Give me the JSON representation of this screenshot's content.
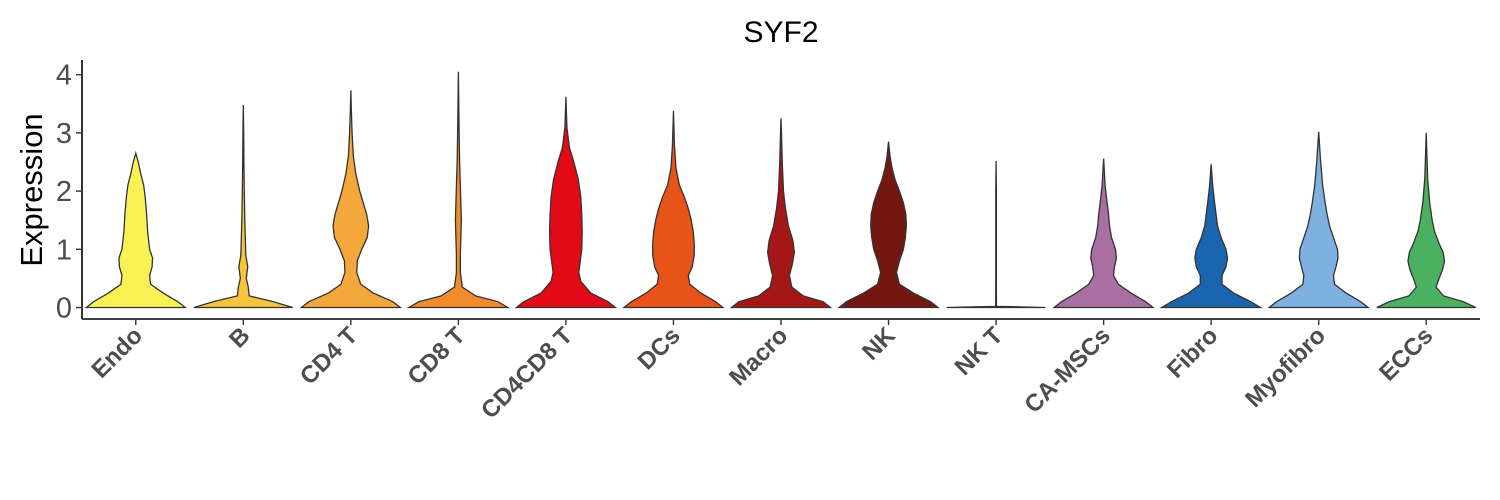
{
  "chart_data": {
    "type": "violin",
    "title": "SYF2",
    "xlabel": "",
    "ylabel": "Expression",
    "ylim": [
      -0.2,
      4.25
    ],
    "yticks": [
      0,
      1,
      2,
      3,
      4
    ],
    "grid": false,
    "legend": "none",
    "categories": [
      "Endo",
      "B",
      "CD4 T",
      "CD8 T",
      "CD4CD8 T",
      "DCs",
      "Macro",
      "NK",
      "NK T",
      "CA-MSCs",
      "Fibro",
      "Myofibro",
      "ECCs"
    ],
    "series": [
      {
        "category": "Endo",
        "color": "#F9F254",
        "max": 2.65,
        "density": [
          [
            0,
            1.0
          ],
          [
            0.1,
            0.85
          ],
          [
            0.25,
            0.55
          ],
          [
            0.4,
            0.3
          ],
          [
            0.55,
            0.28
          ],
          [
            0.7,
            0.33
          ],
          [
            0.85,
            0.34
          ],
          [
            1.0,
            0.28
          ],
          [
            1.3,
            0.24
          ],
          [
            1.6,
            0.22
          ],
          [
            1.9,
            0.19
          ],
          [
            2.1,
            0.16
          ],
          [
            2.3,
            0.1
          ],
          [
            2.5,
            0.05
          ],
          [
            2.65,
            0.0
          ]
        ]
      },
      {
        "category": "B",
        "color": "#F7C53B",
        "max": 3.48,
        "density": [
          [
            0,
            1.0
          ],
          [
            0.1,
            0.6
          ],
          [
            0.2,
            0.12
          ],
          [
            0.35,
            0.1
          ],
          [
            0.5,
            0.06
          ],
          [
            0.7,
            0.09
          ],
          [
            0.9,
            0.05
          ],
          [
            1.2,
            0.04
          ],
          [
            1.5,
            0.03
          ],
          [
            2.0,
            0.02
          ],
          [
            2.5,
            0.012
          ],
          [
            3.0,
            0.008
          ],
          [
            3.48,
            0.0
          ]
        ]
      },
      {
        "category": "CD4 T",
        "color": "#F4A73A",
        "max": 3.73,
        "density": [
          [
            0,
            1.0
          ],
          [
            0.1,
            0.85
          ],
          [
            0.25,
            0.45
          ],
          [
            0.4,
            0.2
          ],
          [
            0.6,
            0.12
          ],
          [
            0.8,
            0.13
          ],
          [
            1.0,
            0.22
          ],
          [
            1.2,
            0.33
          ],
          [
            1.4,
            0.36
          ],
          [
            1.6,
            0.32
          ],
          [
            1.8,
            0.25
          ],
          [
            2.0,
            0.18
          ],
          [
            2.3,
            0.1
          ],
          [
            2.6,
            0.05
          ],
          [
            3.0,
            0.025
          ],
          [
            3.4,
            0.01
          ],
          [
            3.73,
            0.0
          ]
        ]
      },
      {
        "category": "CD8 T",
        "color": "#F08B2E",
        "max": 4.05,
        "density": [
          [
            0,
            1.0
          ],
          [
            0.1,
            0.8
          ],
          [
            0.2,
            0.35
          ],
          [
            0.35,
            0.08
          ],
          [
            0.6,
            0.04
          ],
          [
            0.9,
            0.04
          ],
          [
            1.2,
            0.05
          ],
          [
            1.5,
            0.06
          ],
          [
            1.8,
            0.05
          ],
          [
            2.1,
            0.04
          ],
          [
            2.5,
            0.025
          ],
          [
            3.0,
            0.015
          ],
          [
            3.5,
            0.008
          ],
          [
            4.05,
            0.0
          ]
        ]
      },
      {
        "category": "CD4CD8 T",
        "color": "#E20A17",
        "max": 3.62,
        "density": [
          [
            0,
            1.0
          ],
          [
            0.1,
            0.85
          ],
          [
            0.25,
            0.5
          ],
          [
            0.45,
            0.3
          ],
          [
            0.6,
            0.26
          ],
          [
            0.8,
            0.29
          ],
          [
            1.0,
            0.32
          ],
          [
            1.3,
            0.33
          ],
          [
            1.6,
            0.32
          ],
          [
            1.9,
            0.3
          ],
          [
            2.2,
            0.25
          ],
          [
            2.5,
            0.16
          ],
          [
            2.75,
            0.07
          ],
          [
            3.1,
            0.02
          ],
          [
            3.62,
            0.0
          ]
        ]
      },
      {
        "category": "DCs",
        "color": "#E85418",
        "max": 3.38,
        "density": [
          [
            0,
            1.0
          ],
          [
            0.1,
            0.85
          ],
          [
            0.25,
            0.55
          ],
          [
            0.4,
            0.33
          ],
          [
            0.55,
            0.3
          ],
          [
            0.7,
            0.38
          ],
          [
            0.9,
            0.42
          ],
          [
            1.1,
            0.42
          ],
          [
            1.3,
            0.4
          ],
          [
            1.5,
            0.36
          ],
          [
            1.7,
            0.3
          ],
          [
            1.9,
            0.22
          ],
          [
            2.1,
            0.12
          ],
          [
            2.4,
            0.05
          ],
          [
            2.8,
            0.02
          ],
          [
            3.38,
            0.0
          ]
        ]
      },
      {
        "category": "Macro",
        "color": "#A51716",
        "max": 3.25,
        "density": [
          [
            0,
            1.0
          ],
          [
            0.1,
            0.85
          ],
          [
            0.2,
            0.45
          ],
          [
            0.35,
            0.22
          ],
          [
            0.55,
            0.17
          ],
          [
            0.75,
            0.23
          ],
          [
            0.95,
            0.27
          ],
          [
            1.15,
            0.24
          ],
          [
            1.4,
            0.15
          ],
          [
            1.7,
            0.09
          ],
          [
            2.0,
            0.05
          ],
          [
            2.5,
            0.025
          ],
          [
            3.0,
            0.01
          ],
          [
            3.25,
            0.0
          ]
        ]
      },
      {
        "category": "NK",
        "color": "#741711",
        "max": 2.85,
        "density": [
          [
            0,
            1.0
          ],
          [
            0.1,
            0.85
          ],
          [
            0.25,
            0.5
          ],
          [
            0.4,
            0.22
          ],
          [
            0.6,
            0.16
          ],
          [
            0.8,
            0.22
          ],
          [
            1.0,
            0.3
          ],
          [
            1.2,
            0.34
          ],
          [
            1.4,
            0.36
          ],
          [
            1.6,
            0.35
          ],
          [
            1.8,
            0.3
          ],
          [
            2.0,
            0.22
          ],
          [
            2.2,
            0.13
          ],
          [
            2.4,
            0.07
          ],
          [
            2.6,
            0.03
          ],
          [
            2.85,
            0.0
          ]
        ]
      },
      {
        "category": "NK T",
        "color": "#741711",
        "max": 2.52,
        "density": [
          [
            0,
            1.0
          ],
          [
            0.01,
            0.5
          ],
          [
            0.02,
            0.008
          ],
          [
            0.5,
            0.006
          ],
          [
            1.0,
            0.006
          ],
          [
            1.5,
            0.006
          ],
          [
            2.0,
            0.006
          ],
          [
            2.52,
            0.0
          ]
        ]
      },
      {
        "category": "CA-MSCs",
        "color": "#A96FA3",
        "max": 2.56,
        "density": [
          [
            0,
            1.0
          ],
          [
            0.1,
            0.85
          ],
          [
            0.25,
            0.55
          ],
          [
            0.4,
            0.3
          ],
          [
            0.55,
            0.2
          ],
          [
            0.7,
            0.22
          ],
          [
            0.85,
            0.26
          ],
          [
            1.0,
            0.24
          ],
          [
            1.2,
            0.16
          ],
          [
            1.4,
            0.12
          ],
          [
            1.6,
            0.1
          ],
          [
            1.8,
            0.07
          ],
          [
            2.1,
            0.03
          ],
          [
            2.56,
            0.0
          ]
        ]
      },
      {
        "category": "Fibro",
        "color": "#1A65AD",
        "max": 2.46,
        "density": [
          [
            0,
            1.0
          ],
          [
            0.1,
            0.8
          ],
          [
            0.25,
            0.45
          ],
          [
            0.4,
            0.22
          ],
          [
            0.55,
            0.22
          ],
          [
            0.7,
            0.3
          ],
          [
            0.85,
            0.33
          ],
          [
            1.0,
            0.3
          ],
          [
            1.2,
            0.2
          ],
          [
            1.4,
            0.13
          ],
          [
            1.6,
            0.1
          ],
          [
            1.8,
            0.07
          ],
          [
            2.1,
            0.03
          ],
          [
            2.46,
            0.0
          ]
        ]
      },
      {
        "category": "Myofibro",
        "color": "#7FB1E0",
        "max": 3.02,
        "density": [
          [
            0,
            1.0
          ],
          [
            0.1,
            0.85
          ],
          [
            0.25,
            0.55
          ],
          [
            0.4,
            0.32
          ],
          [
            0.55,
            0.3
          ],
          [
            0.7,
            0.35
          ],
          [
            0.85,
            0.39
          ],
          [
            1.0,
            0.38
          ],
          [
            1.2,
            0.3
          ],
          [
            1.4,
            0.22
          ],
          [
            1.6,
            0.17
          ],
          [
            1.8,
            0.13
          ],
          [
            2.1,
            0.08
          ],
          [
            2.5,
            0.04
          ],
          [
            3.02,
            0.0
          ]
        ]
      },
      {
        "category": "ECCs",
        "color": "#4BB05F",
        "max": 3.0,
        "density": [
          [
            0,
            1.0
          ],
          [
            0.1,
            0.75
          ],
          [
            0.2,
            0.35
          ],
          [
            0.35,
            0.2
          ],
          [
            0.5,
            0.26
          ],
          [
            0.65,
            0.33
          ],
          [
            0.8,
            0.37
          ],
          [
            0.95,
            0.34
          ],
          [
            1.1,
            0.26
          ],
          [
            1.3,
            0.17
          ],
          [
            1.5,
            0.12
          ],
          [
            1.8,
            0.07
          ],
          [
            2.2,
            0.03
          ],
          [
            2.6,
            0.015
          ],
          [
            3.0,
            0.0
          ]
        ]
      }
    ]
  }
}
